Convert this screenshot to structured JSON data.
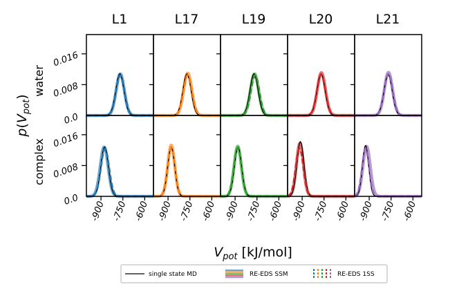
{
  "chart_data": {
    "type": "line",
    "columns": [
      "L1",
      "L17",
      "L19",
      "L20",
      "L21"
    ],
    "rows": [
      "water",
      "complex"
    ],
    "ylabel": "p(V_pot)",
    "xlabel": "V_pot [kJ/mol]",
    "x_ticks": [
      "-900",
      "-750",
      "-600"
    ],
    "y_ticks": [
      "0.0",
      "0.008",
      "0.016"
    ],
    "xlim": [
      -1000,
      -540
    ],
    "ylim": [
      0,
      0.021
    ],
    "colors": [
      "#1f77b4",
      "#ff7f0e",
      "#2ca02c",
      "#d62728",
      "#9467bd"
    ],
    "legend": {
      "position": "bottom",
      "md": "single state MD",
      "ssm": "RE-EDS SSM",
      "oss": "RE-EDS 1SS"
    },
    "distributions": {
      "water": [
        {
          "ligand": "L1",
          "md": {
            "mean": -770,
            "sd": 28,
            "peak": 0.0108
          },
          "ssm": {
            "mean": -768,
            "sd": 28,
            "peak": 0.0108
          },
          "oss": {
            "mean": -768,
            "sd": 29,
            "peak": 0.0104
          }
        },
        {
          "ligand": "L17",
          "md": {
            "mean": -770,
            "sd": 28,
            "peak": 0.0108
          },
          "ssm": {
            "mean": -765,
            "sd": 28,
            "peak": 0.011
          },
          "oss": {
            "mean": -765,
            "sd": 29,
            "peak": 0.0105
          }
        },
        {
          "ligand": "L19",
          "md": {
            "mean": -770,
            "sd": 28,
            "peak": 0.0108
          },
          "ssm": {
            "mean": -767,
            "sd": 28,
            "peak": 0.0108
          },
          "oss": {
            "mean": -762,
            "sd": 29,
            "peak": 0.0104
          }
        },
        {
          "ligand": "L20",
          "md": {
            "mean": -770,
            "sd": 28,
            "peak": 0.0108
          },
          "ssm": {
            "mean": -768,
            "sd": 28,
            "peak": 0.0111
          },
          "oss": {
            "mean": -770,
            "sd": 29,
            "peak": 0.0106
          }
        },
        {
          "ligand": "L21",
          "md": {
            "mean": -770,
            "sd": 28,
            "peak": 0.0106
          },
          "ssm": {
            "mean": -768,
            "sd": 28,
            "peak": 0.0112
          },
          "oss": {
            "mean": -768,
            "sd": 29,
            "peak": 0.0108
          }
        }
      ],
      "complex": [
        {
          "ligand": "L1",
          "md": {
            "mean": -875,
            "sd": 26,
            "peak": 0.0128
          },
          "ssm": {
            "mean": -878,
            "sd": 27,
            "peak": 0.0128
          },
          "oss": {
            "mean": -872,
            "sd": 28,
            "peak": 0.0124
          }
        },
        {
          "ligand": "L17",
          "md": {
            "mean": -878,
            "sd": 24,
            "peak": 0.0128
          },
          "ssm": {
            "mean": -878,
            "sd": 24,
            "peak": 0.0133
          },
          "oss": {
            "mean": -878,
            "sd": 25,
            "peak": 0.0126
          }
        },
        {
          "ligand": "L19",
          "md": {
            "mean": -880,
            "sd": 25,
            "peak": 0.0128
          },
          "ssm": {
            "mean": -882,
            "sd": 25,
            "peak": 0.013
          },
          "oss": {
            "mean": -882,
            "sd": 26,
            "peak": 0.0126
          }
        },
        {
          "ligand": "L20",
          "md": {
            "mean": -912,
            "sd": 24,
            "peak": 0.0142
          },
          "ssm": {
            "mean": -915,
            "sd": 24,
            "peak": 0.0138
          },
          "oss": {
            "mean": -918,
            "sd": 26,
            "peak": 0.0124
          }
        },
        {
          "ligand": "L21",
          "md": {
            "mean": -925,
            "sd": 21,
            "peak": 0.0132
          },
          "ssm": {
            "mean": -918,
            "sd": 25,
            "peak": 0.013
          },
          "oss": {
            "mean": -925,
            "sd": 24,
            "peak": 0.0124
          }
        }
      ]
    }
  }
}
